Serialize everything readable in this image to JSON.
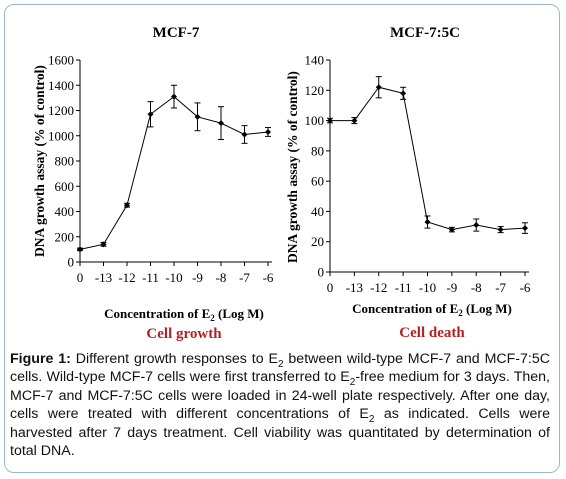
{
  "colors": {
    "frame": "#9bb7cf",
    "axis": "#000000",
    "line": "#000000",
    "title_red": "#b22222"
  },
  "chart_data": [
    {
      "type": "line",
      "title": "MCF-7",
      "xlabel": "Concentration of E2 (Log M)",
      "xlabel_sub": "2",
      "ylabel": "DNA growth assay (% of control)",
      "categories": [
        "0",
        "-13",
        "-12",
        "-11",
        "-10",
        "-9",
        "-8",
        "-7",
        "-6"
      ],
      "values": [
        100,
        140,
        450,
        1170,
        1310,
        1150,
        1100,
        1010,
        1030
      ],
      "error": [
        10,
        15,
        15,
        100,
        90,
        110,
        130,
        70,
        35
      ],
      "ylim": [
        0,
        1600
      ],
      "yticks": [
        "0",
        "200",
        "400",
        "600",
        "800",
        "1000",
        "1200",
        "1400",
        "1600"
      ],
      "bottom_label": "Cell growth",
      "grid": false
    },
    {
      "type": "line",
      "title": "MCF-7:5C",
      "xlabel": "Concentration of E2 (Log M)",
      "xlabel_sub": "2",
      "ylabel": "DNA growth assay (% of control)",
      "categories": [
        "0",
        "-13",
        "-12",
        "-11",
        "-10",
        "-9",
        "-8",
        "-7",
        "-6"
      ],
      "values": [
        100,
        100,
        122,
        118,
        33,
        28,
        31,
        28,
        29
      ],
      "error": [
        1.5,
        2,
        7,
        4,
        4,
        1.5,
        4,
        2,
        3.5
      ],
      "ylim": [
        0,
        140
      ],
      "yticks": [
        "0",
        "20",
        "40",
        "60",
        "80",
        "100",
        "120",
        "140"
      ],
      "bottom_label": "Cell death",
      "grid": false
    }
  ],
  "caption": {
    "label": "Figure 1:",
    "part1": " Different growth responses to E",
    "sub1": "2",
    "part2": " between wild-type MCF-7 and MCF-7:5C cells. Wild-type MCF-7 cells were first transferred to E",
    "sub2": "2",
    "part3": "-free medium for 3 days. Then, MCF-7 and MCF-7:5C cells were loaded in 24-well plate respectively. After one day, cells were treated with different concentrations of E",
    "sub3": "2",
    "part4": " as indicated. Cells were harvested after 7 days treatment. Cell viability was quantitated by determination of total DNA."
  }
}
